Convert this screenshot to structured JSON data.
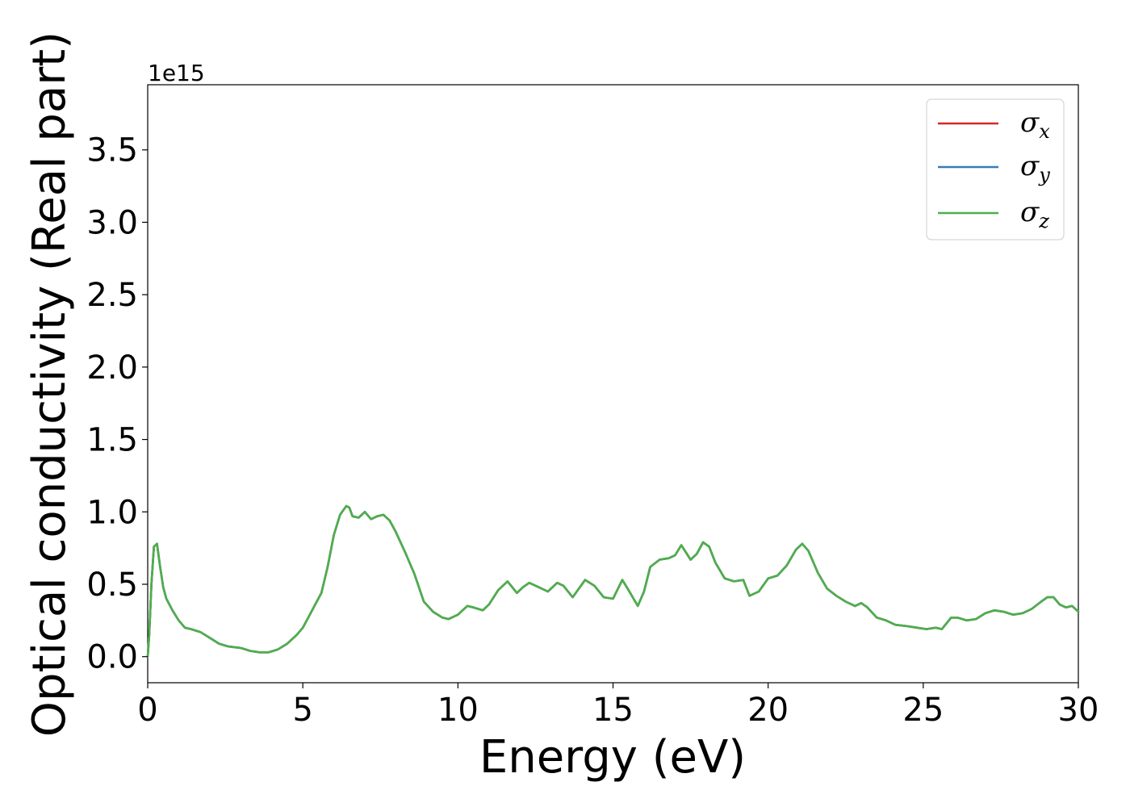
{
  "chart_data": {
    "type": "line",
    "xlabel": "Energy (eV)",
    "ylabel": "Optical conductivity (Real part)",
    "y_offset_label": "1e15",
    "y_multiplier": 1000000000000000.0,
    "xlim": [
      0,
      30
    ],
    "ylim": [
      -0.18,
      3.95
    ],
    "xticks": [
      0,
      5,
      10,
      15,
      20,
      25,
      30
    ],
    "xtick_labels": [
      "0",
      "5",
      "10",
      "15",
      "20",
      "25",
      "30"
    ],
    "yticks": [
      0.0,
      0.5,
      1.0,
      1.5,
      2.0,
      2.5,
      3.0,
      3.5
    ],
    "ytick_labels": [
      "0.0",
      "0.5",
      "1.0",
      "1.5",
      "2.0",
      "2.5",
      "3.0",
      "3.5"
    ],
    "grid": false,
    "legend_position": "top-right",
    "series": [
      {
        "name": "σx",
        "symbol": "σ",
        "subscript": "x",
        "color": "#d62728",
        "x": [
          0,
          0.05,
          0.12,
          0.2,
          0.3,
          0.4,
          0.5,
          0.6,
          0.8,
          1.0,
          1.2,
          1.4,
          1.7,
          2.0,
          2.3,
          2.6,
          3.0,
          3.3,
          3.6,
          3.9,
          4.2,
          4.5,
          4.8,
          5.0,
          5.2,
          5.4,
          5.6,
          5.8,
          6.0,
          6.2,
          6.4,
          6.5,
          6.6,
          6.8,
          7.0,
          7.2,
          7.4,
          7.6,
          7.8,
          8.0,
          8.3,
          8.6,
          8.9,
          9.2,
          9.5,
          9.7,
          10.0,
          10.3,
          10.5,
          10.8,
          11.0,
          11.3,
          11.6,
          11.9,
          12.1,
          12.3,
          12.6,
          12.9,
          13.2,
          13.4,
          13.7,
          14.1,
          14.4,
          14.7,
          15.0,
          15.3,
          15.5,
          15.8,
          16.0,
          16.2,
          16.5,
          16.8,
          17.0,
          17.2,
          17.5,
          17.7,
          17.9,
          18.1,
          18.3,
          18.6,
          18.9,
          19.2,
          19.4,
          19.7,
          20.0,
          20.3,
          20.6,
          20.9,
          21.1,
          21.3,
          21.6,
          21.9,
          22.2,
          22.5,
          22.8,
          23.0,
          23.2,
          23.5,
          23.8,
          24.1,
          24.5,
          24.8,
          25.1,
          25.4,
          25.6,
          25.9,
          26.1,
          26.4,
          26.7,
          27.0,
          27.3,
          27.6,
          27.9,
          28.2,
          28.5,
          28.8,
          29.0,
          29.2,
          29.4,
          29.6,
          29.8,
          30.0
        ],
        "y": [
          0.0,
          0.15,
          0.5,
          0.76,
          0.78,
          0.62,
          0.48,
          0.4,
          0.32,
          0.25,
          0.2,
          0.19,
          0.17,
          0.13,
          0.09,
          0.07,
          0.06,
          0.04,
          0.03,
          0.03,
          0.05,
          0.09,
          0.15,
          0.2,
          0.28,
          0.36,
          0.44,
          0.62,
          0.84,
          0.98,
          1.04,
          1.03,
          0.97,
          0.96,
          1.0,
          0.95,
          0.97,
          0.98,
          0.94,
          0.86,
          0.72,
          0.57,
          0.38,
          0.31,
          0.27,
          0.26,
          0.29,
          0.35,
          0.34,
          0.32,
          0.36,
          0.46,
          0.52,
          0.44,
          0.48,
          0.51,
          0.48,
          0.45,
          0.51,
          0.49,
          0.41,
          0.53,
          0.49,
          0.41,
          0.4,
          0.53,
          0.46,
          0.35,
          0.45,
          0.62,
          0.67,
          0.68,
          0.7,
          0.77,
          0.67,
          0.71,
          0.79,
          0.76,
          0.65,
          0.54,
          0.52,
          0.53,
          0.42,
          0.45,
          0.54,
          0.56,
          0.63,
          0.74,
          0.78,
          0.73,
          0.58,
          0.47,
          0.42,
          0.38,
          0.35,
          0.37,
          0.34,
          0.27,
          0.25,
          0.22,
          0.21,
          0.2,
          0.19,
          0.2,
          0.19,
          0.27,
          0.27,
          0.25,
          0.26,
          0.3,
          0.32,
          0.31,
          0.29,
          0.3,
          0.33,
          0.38,
          0.41,
          0.41,
          0.36,
          0.34,
          0.35,
          0.31
        ]
      },
      {
        "name": "σy",
        "symbol": "σ",
        "subscript": "y",
        "color": "#377eb8",
        "x": [
          0,
          0.05,
          0.12,
          0.2,
          0.3,
          0.4,
          0.5,
          0.6,
          0.8,
          1.0,
          1.2,
          1.4,
          1.7,
          2.0,
          2.3,
          2.6,
          3.0,
          3.3,
          3.6,
          3.9,
          4.2,
          4.5,
          4.8,
          5.0,
          5.2,
          5.4,
          5.6,
          5.8,
          6.0,
          6.2,
          6.4,
          6.5,
          6.6,
          6.8,
          7.0,
          7.2,
          7.4,
          7.6,
          7.8,
          8.0,
          8.3,
          8.6,
          8.9,
          9.2,
          9.5,
          9.7,
          10.0,
          10.3,
          10.5,
          10.8,
          11.0,
          11.3,
          11.6,
          11.9,
          12.1,
          12.3,
          12.6,
          12.9,
          13.2,
          13.4,
          13.7,
          14.1,
          14.4,
          14.7,
          15.0,
          15.3,
          15.5,
          15.8,
          16.0,
          16.2,
          16.5,
          16.8,
          17.0,
          17.2,
          17.5,
          17.7,
          17.9,
          18.1,
          18.3,
          18.6,
          18.9,
          19.2,
          19.4,
          19.7,
          20.0,
          20.3,
          20.6,
          20.9,
          21.1,
          21.3,
          21.6,
          21.9,
          22.2,
          22.5,
          22.8,
          23.0,
          23.2,
          23.5,
          23.8,
          24.1,
          24.5,
          24.8,
          25.1,
          25.4,
          25.6,
          25.9,
          26.1,
          26.4,
          26.7,
          27.0,
          27.3,
          27.6,
          27.9,
          28.2,
          28.5,
          28.8,
          29.0,
          29.2,
          29.4,
          29.6,
          29.8,
          30.0
        ],
        "y": [
          0.0,
          0.15,
          0.5,
          0.76,
          0.78,
          0.62,
          0.48,
          0.4,
          0.32,
          0.25,
          0.2,
          0.19,
          0.17,
          0.13,
          0.09,
          0.07,
          0.06,
          0.04,
          0.03,
          0.03,
          0.05,
          0.09,
          0.15,
          0.2,
          0.28,
          0.36,
          0.44,
          0.62,
          0.84,
          0.98,
          1.04,
          1.03,
          0.97,
          0.96,
          1.0,
          0.95,
          0.97,
          0.98,
          0.94,
          0.86,
          0.72,
          0.57,
          0.38,
          0.31,
          0.27,
          0.26,
          0.29,
          0.35,
          0.34,
          0.32,
          0.36,
          0.46,
          0.52,
          0.44,
          0.48,
          0.51,
          0.48,
          0.45,
          0.51,
          0.49,
          0.41,
          0.53,
          0.49,
          0.41,
          0.4,
          0.53,
          0.46,
          0.35,
          0.45,
          0.62,
          0.67,
          0.68,
          0.7,
          0.77,
          0.67,
          0.71,
          0.79,
          0.76,
          0.65,
          0.54,
          0.52,
          0.53,
          0.42,
          0.45,
          0.54,
          0.56,
          0.63,
          0.74,
          0.78,
          0.73,
          0.58,
          0.47,
          0.42,
          0.38,
          0.35,
          0.37,
          0.34,
          0.27,
          0.25,
          0.22,
          0.21,
          0.2,
          0.19,
          0.2,
          0.19,
          0.27,
          0.27,
          0.25,
          0.26,
          0.3,
          0.32,
          0.31,
          0.29,
          0.3,
          0.33,
          0.38,
          0.41,
          0.41,
          0.36,
          0.34,
          0.35,
          0.31
        ]
      },
      {
        "name": "σz",
        "symbol": "σ",
        "subscript": "z",
        "color": "#4daf4a",
        "x": [
          0,
          0.05,
          0.12,
          0.2,
          0.3,
          0.4,
          0.5,
          0.6,
          0.8,
          1.0,
          1.2,
          1.4,
          1.7,
          2.0,
          2.3,
          2.6,
          3.0,
          3.3,
          3.6,
          3.9,
          4.2,
          4.5,
          4.8,
          5.0,
          5.2,
          5.4,
          5.6,
          5.8,
          6.0,
          6.2,
          6.4,
          6.5,
          6.6,
          6.8,
          7.0,
          7.2,
          7.4,
          7.6,
          7.8,
          8.0,
          8.3,
          8.6,
          8.9,
          9.2,
          9.5,
          9.7,
          10.0,
          10.3,
          10.5,
          10.8,
          11.0,
          11.3,
          11.6,
          11.9,
          12.1,
          12.3,
          12.6,
          12.9,
          13.2,
          13.4,
          13.7,
          14.1,
          14.4,
          14.7,
          15.0,
          15.3,
          15.5,
          15.8,
          16.0,
          16.2,
          16.5,
          16.8,
          17.0,
          17.2,
          17.5,
          17.7,
          17.9,
          18.1,
          18.3,
          18.6,
          18.9,
          19.2,
          19.4,
          19.7,
          20.0,
          20.3,
          20.6,
          20.9,
          21.1,
          21.3,
          21.6,
          21.9,
          22.2,
          22.5,
          22.8,
          23.0,
          23.2,
          23.5,
          23.8,
          24.1,
          24.5,
          24.8,
          25.1,
          25.4,
          25.6,
          25.9,
          26.1,
          26.4,
          26.7,
          27.0,
          27.3,
          27.6,
          27.9,
          28.2,
          28.5,
          28.8,
          29.0,
          29.2,
          29.4,
          29.6,
          29.8,
          30.0
        ],
        "y": [
          0.0,
          0.15,
          0.5,
          0.76,
          0.78,
          0.62,
          0.48,
          0.4,
          0.32,
          0.25,
          0.2,
          0.19,
          0.17,
          0.13,
          0.09,
          0.07,
          0.06,
          0.04,
          0.03,
          0.03,
          0.05,
          0.09,
          0.15,
          0.2,
          0.28,
          0.36,
          0.44,
          0.62,
          0.84,
          0.98,
          1.04,
          1.03,
          0.97,
          0.96,
          1.0,
          0.95,
          0.97,
          0.98,
          0.94,
          0.86,
          0.72,
          0.57,
          0.38,
          0.31,
          0.27,
          0.26,
          0.29,
          0.35,
          0.34,
          0.32,
          0.36,
          0.46,
          0.52,
          0.44,
          0.48,
          0.51,
          0.48,
          0.45,
          0.51,
          0.49,
          0.41,
          0.53,
          0.49,
          0.41,
          0.4,
          0.53,
          0.46,
          0.35,
          0.45,
          0.62,
          0.67,
          0.68,
          0.7,
          0.77,
          0.67,
          0.71,
          0.79,
          0.76,
          0.65,
          0.54,
          0.52,
          0.53,
          0.42,
          0.45,
          0.54,
          0.56,
          0.63,
          0.74,
          0.78,
          0.73,
          0.58,
          0.47,
          0.42,
          0.38,
          0.35,
          0.37,
          0.34,
          0.27,
          0.25,
          0.22,
          0.21,
          0.2,
          0.19,
          0.2,
          0.19,
          0.27,
          0.27,
          0.25,
          0.26,
          0.3,
          0.32,
          0.31,
          0.29,
          0.3,
          0.33,
          0.38,
          0.41,
          0.41,
          0.36,
          0.34,
          0.35,
          0.31
        ]
      }
    ]
  }
}
